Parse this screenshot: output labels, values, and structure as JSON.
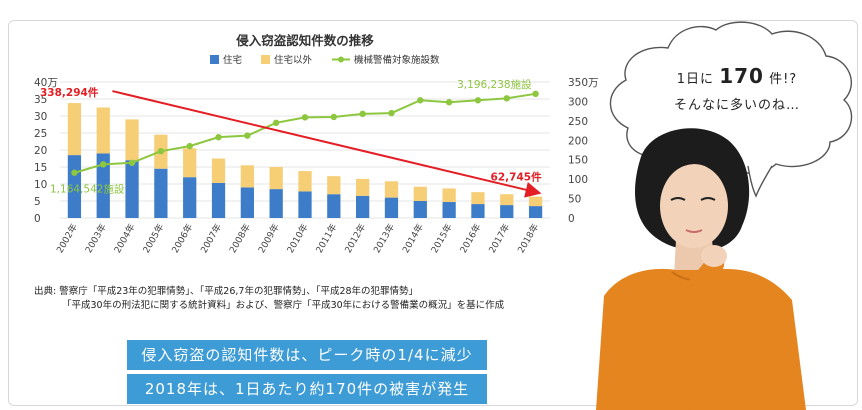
{
  "chart_data": {
    "type": "bar",
    "title": "侵入窃盗認知件数の推移",
    "categories": [
      "2002年",
      "2003年",
      "2004年",
      "2005年",
      "2006年",
      "2007年",
      "2008年",
      "2009年",
      "2010年",
      "2011年",
      "2012年",
      "2013年",
      "2014年",
      "2015年",
      "2016年",
      "2017年",
      "2018年"
    ],
    "series": [
      {
        "name": "住宅",
        "kind": "bar",
        "color": "#3d7cc9",
        "values": [
          18.5,
          19.0,
          17.0,
          14.5,
          12.0,
          10.3,
          9.0,
          8.5,
          7.8,
          7.0,
          6.5,
          6.0,
          5.0,
          4.7,
          4.1,
          3.8,
          3.5
        ]
      },
      {
        "name": "住宅以外",
        "kind": "bar",
        "color": "#f5ce76",
        "values": [
          15.3,
          13.5,
          12.0,
          10.0,
          8.5,
          7.2,
          6.5,
          6.5,
          6.0,
          5.3,
          5.0,
          4.8,
          4.2,
          4.0,
          3.5,
          3.2,
          2.8
        ]
      },
      {
        "name": "機械警備対象施設数",
        "kind": "line",
        "axis": "right",
        "color": "#8dc63f",
        "values": [
          116.5,
          138,
          142,
          172,
          185,
          208,
          212,
          245,
          259,
          260,
          268,
          270,
          303,
          298,
          303,
          308,
          319.6
        ]
      }
    ],
    "ylim_left": [
      0,
      40
    ],
    "yticks_left": [
      "0",
      "5",
      "10",
      "15",
      "20",
      "25",
      "30",
      "35",
      "40万"
    ],
    "ylim_right": [
      0,
      350
    ],
    "yticks_right": [
      "0",
      "50",
      "100",
      "150",
      "200",
      "250",
      "300",
      "350万"
    ],
    "annotations": {
      "peak_count": "338,294件",
      "latest_count": "62,745件",
      "start_facilities": "1,164,542施設",
      "end_facilities": "3,196,238施設"
    },
    "legend_position": "top",
    "grid": true
  },
  "source": {
    "line1": "出典: 警察庁「平成23年の犯罪情勢」、「平成26,7年の犯罪情勢」、「平成28年の犯罪情勢」",
    "line2": "「平成30年の刑法犯に関する統計資料」および、警察庁「平成30年における警備業の概況」を基に作成"
  },
  "banners": {
    "first": "侵入窃盗の認知件数は、ピーク時の1/4に減少",
    "second": "2018年は、1日あたり約170件の被害が発生"
  },
  "bubble": {
    "line1_pre": "1日に",
    "line1_num": "170",
    "line1_post": "件!?",
    "line2": "そんなに多いのね…"
  },
  "colors": {
    "accent_red": "#e31e24",
    "bubble_border": "#555555",
    "banner_blue": "#3d9bd6"
  }
}
